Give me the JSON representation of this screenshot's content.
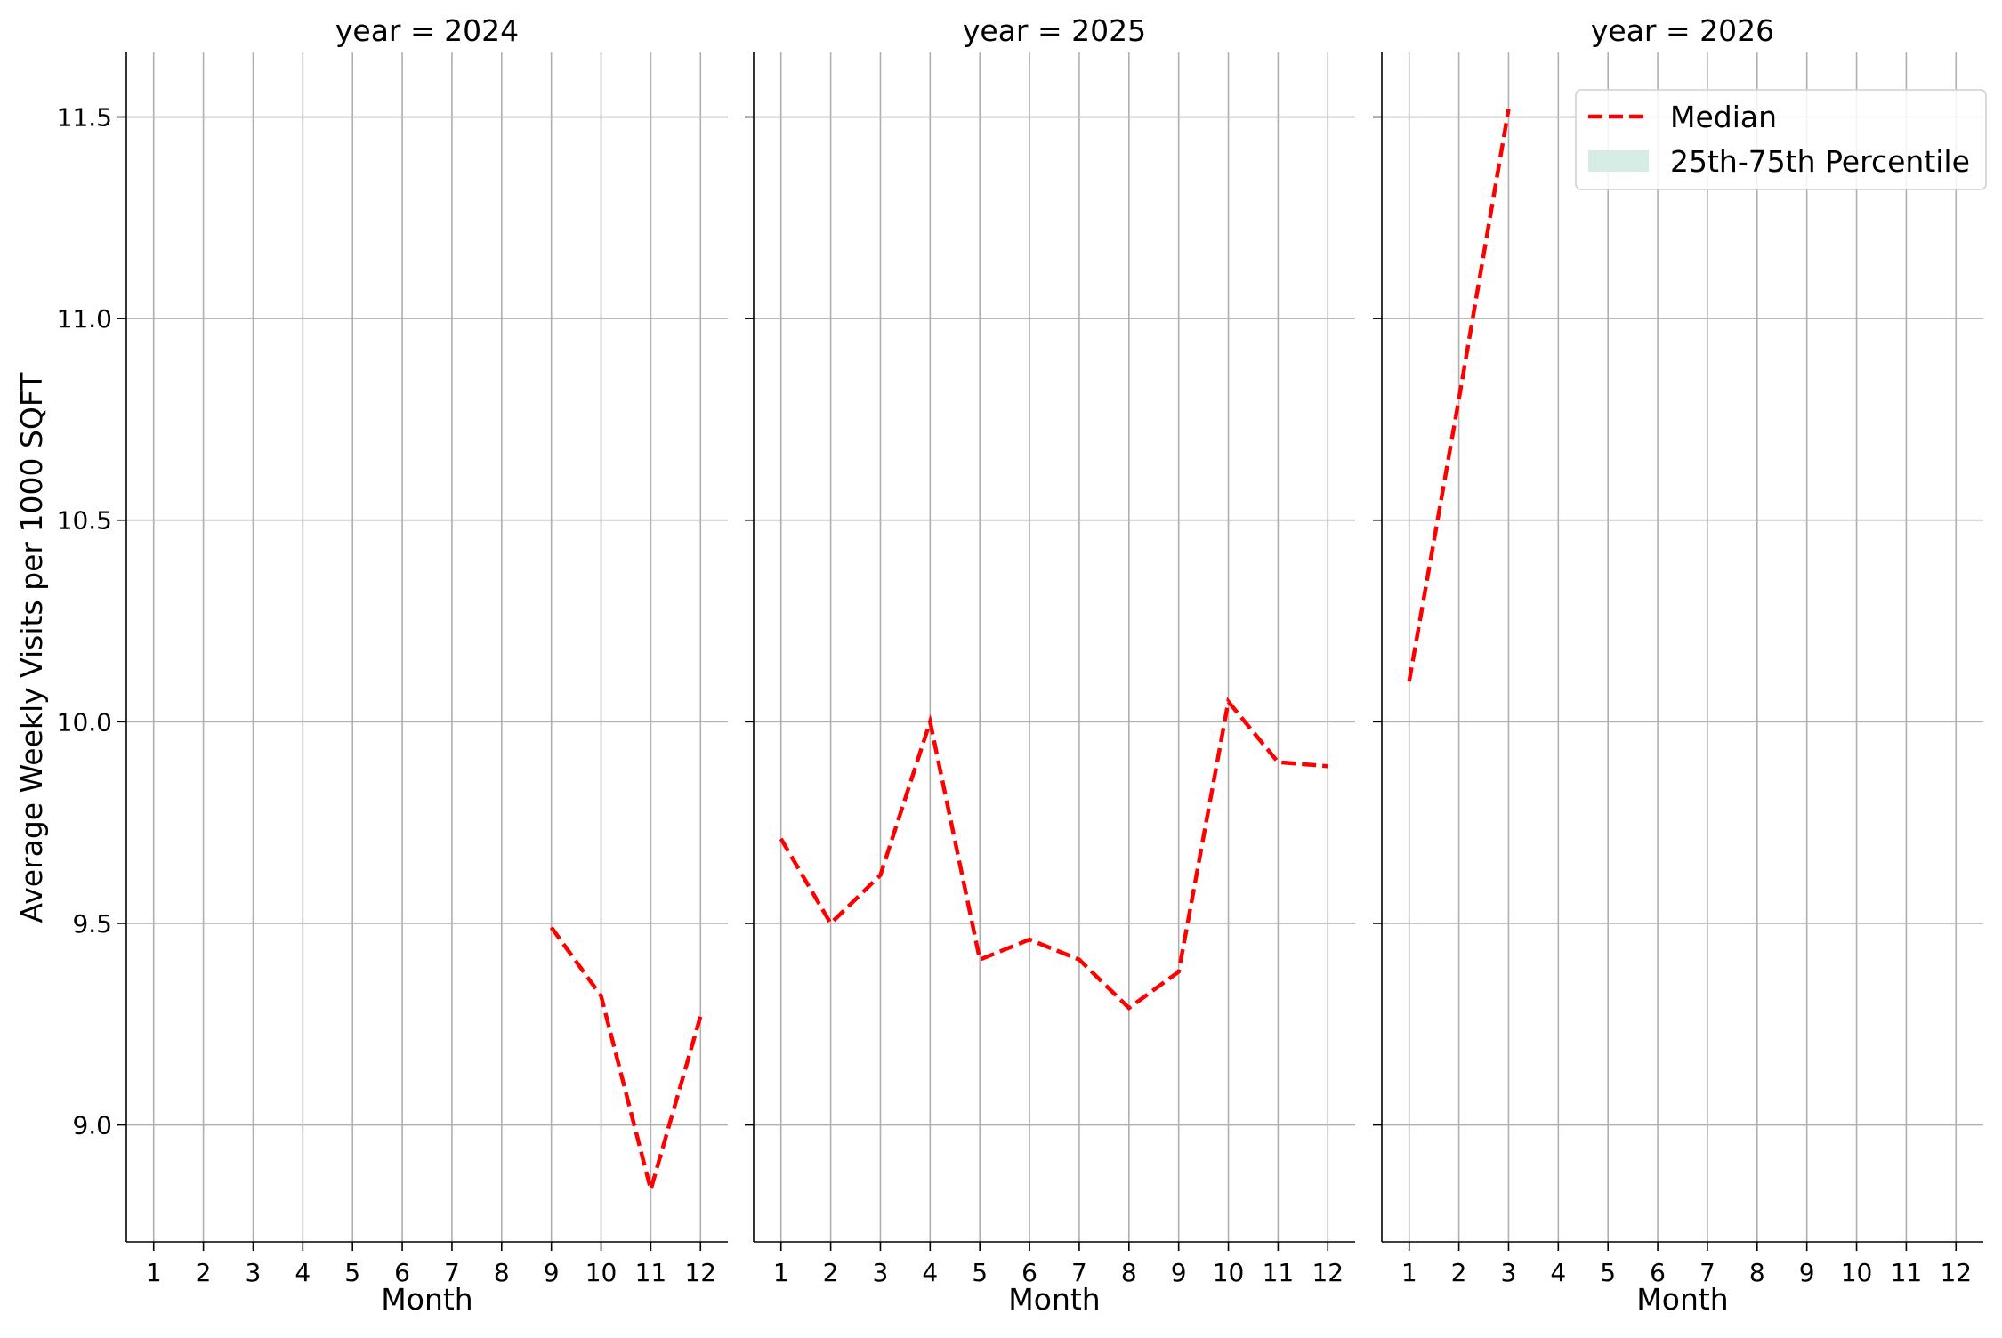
{
  "chart_data": {
    "type": "line",
    "ylabel": "Average Weekly Visits per 1000 SQFT",
    "xlabel": "Month",
    "ylim": [
      8.71,
      11.66
    ],
    "xlim": [
      0.45,
      12.55
    ],
    "y_ticks": [
      9.0,
      9.5,
      10.0,
      10.5,
      11.0,
      11.5
    ],
    "y_tick_labels": [
      "9.0",
      "9.5",
      "10.0",
      "10.5",
      "11.0",
      "11.5"
    ],
    "x_ticks": [
      1,
      2,
      3,
      4,
      5,
      6,
      7,
      8,
      9,
      10,
      11,
      12
    ],
    "x_tick_labels": [
      "1",
      "2",
      "3",
      "4",
      "5",
      "6",
      "7",
      "8",
      "9",
      "10",
      "11",
      "12"
    ],
    "grid": true,
    "line_color": "#ff0000",
    "band_color": "#d5ede5",
    "legend": {
      "placement": "top-right",
      "entries": [
        {
          "label": "Median",
          "kind": "line"
        },
        {
          "label": "25th-75th Percentile",
          "kind": "band"
        }
      ]
    },
    "panels": [
      {
        "title": "year = 2024",
        "series": [
          {
            "name": "Median",
            "x": [
              9,
              10,
              11,
              12
            ],
            "y": [
              9.49,
              9.32,
              8.84,
              9.27
            ]
          }
        ]
      },
      {
        "title": "year = 2025",
        "series": [
          {
            "name": "Median",
            "x": [
              1,
              2,
              3,
              4,
              5,
              6,
              7,
              8,
              9,
              10,
              11,
              12
            ],
            "y": [
              9.71,
              9.5,
              9.62,
              10.0,
              9.41,
              9.46,
              9.41,
              9.29,
              9.38,
              10.05,
              9.9,
              9.89
            ]
          }
        ]
      },
      {
        "title": "year = 2026",
        "series": [
          {
            "name": "Median",
            "x": [
              1,
              2,
              3
            ],
            "y": [
              10.1,
              10.8,
              11.52
            ]
          }
        ]
      }
    ]
  }
}
